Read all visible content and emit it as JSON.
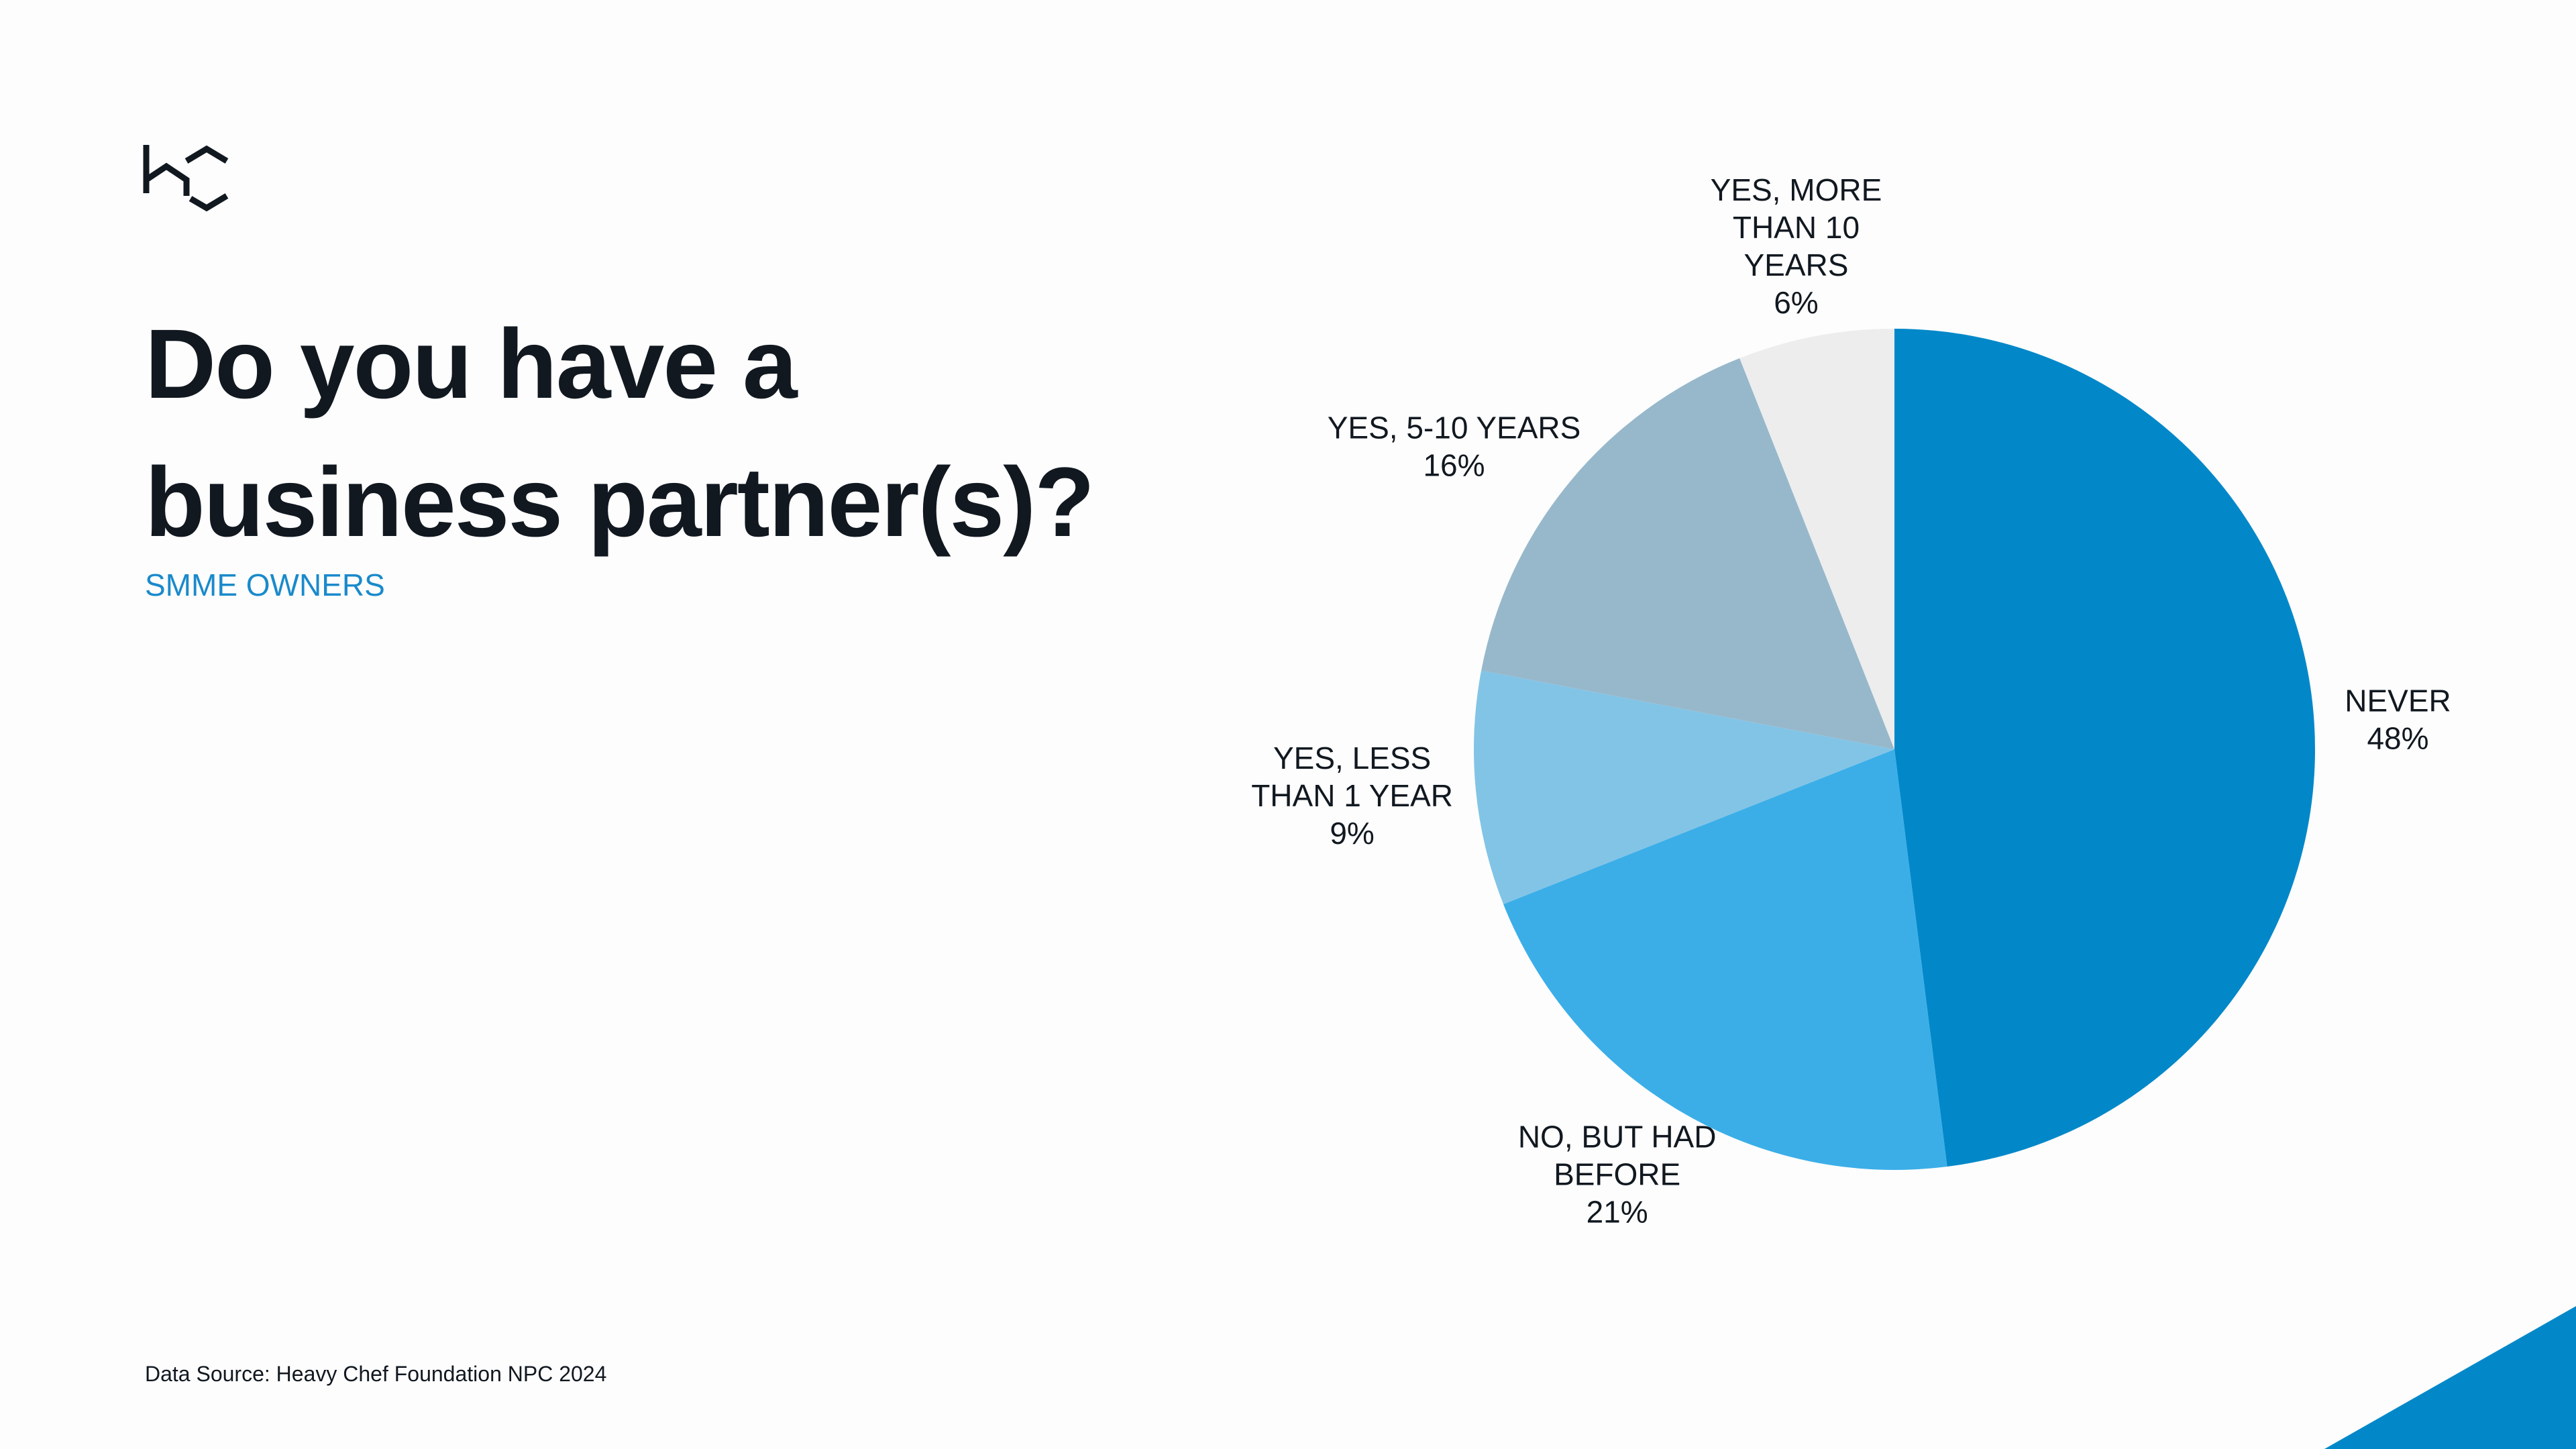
{
  "chart_data": {
    "type": "pie",
    "title": "Do you have a business partner(s)?",
    "subtitle": "SMME OWNERS",
    "source": "Data Source: Heavy Chef Foundation NPC 2024",
    "categories": [
      "NEVER",
      "NO, BUT HAD BEFORE",
      "YES, LESS THAN 1 YEAR",
      "YES, 5-10 YEARS",
      "YES, MORE THAN 10 YEARS"
    ],
    "values": [
      48,
      21,
      9,
      16,
      6
    ],
    "value_labels": [
      "48%",
      "21%",
      "9%",
      "16%",
      "6%"
    ],
    "colors": [
      "#0288c9",
      "#3baee8",
      "#82c4e6",
      "#97b8cb",
      "#ededed"
    ]
  }
}
